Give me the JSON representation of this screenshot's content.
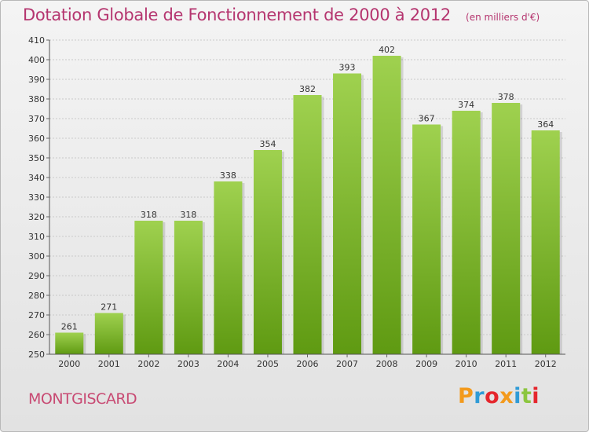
{
  "header": {
    "title": "Dotation Globale de Fonctionnement de 2000 à 2012",
    "unit": "(en milliers d'€)"
  },
  "footer": {
    "commune": "MONTGISCARD",
    "logo_letters": [
      "P",
      "r",
      "o",
      "x",
      "i",
      "t",
      "i"
    ],
    "logo_colors": [
      "#f39a1c",
      "#2f9bd6",
      "#e5262d",
      "#f39a1c",
      "#2f9bd6",
      "#8cc63f",
      "#e5262d"
    ]
  },
  "chart_data": {
    "type": "bar",
    "title": "Dotation Globale de Fonctionnement de 2000 à 2012",
    "subtitle": "(en milliers d'€)",
    "categories": [
      "2000",
      "2001",
      "2002",
      "2003",
      "2004",
      "2005",
      "2006",
      "2007",
      "2008",
      "2009",
      "2010",
      "2011",
      "2012"
    ],
    "values": [
      261,
      271,
      318,
      318,
      338,
      354,
      382,
      393,
      402,
      367,
      374,
      378,
      364
    ],
    "ylim": [
      250,
      410
    ],
    "yticks": [
      250,
      260,
      270,
      280,
      290,
      300,
      310,
      320,
      330,
      340,
      350,
      360,
      370,
      380,
      390,
      400,
      410
    ],
    "grid": true,
    "bar_color_top": "#9fd14f",
    "bar_color_bottom": "#5f9a12",
    "xlabel": "",
    "ylabel": ""
  }
}
